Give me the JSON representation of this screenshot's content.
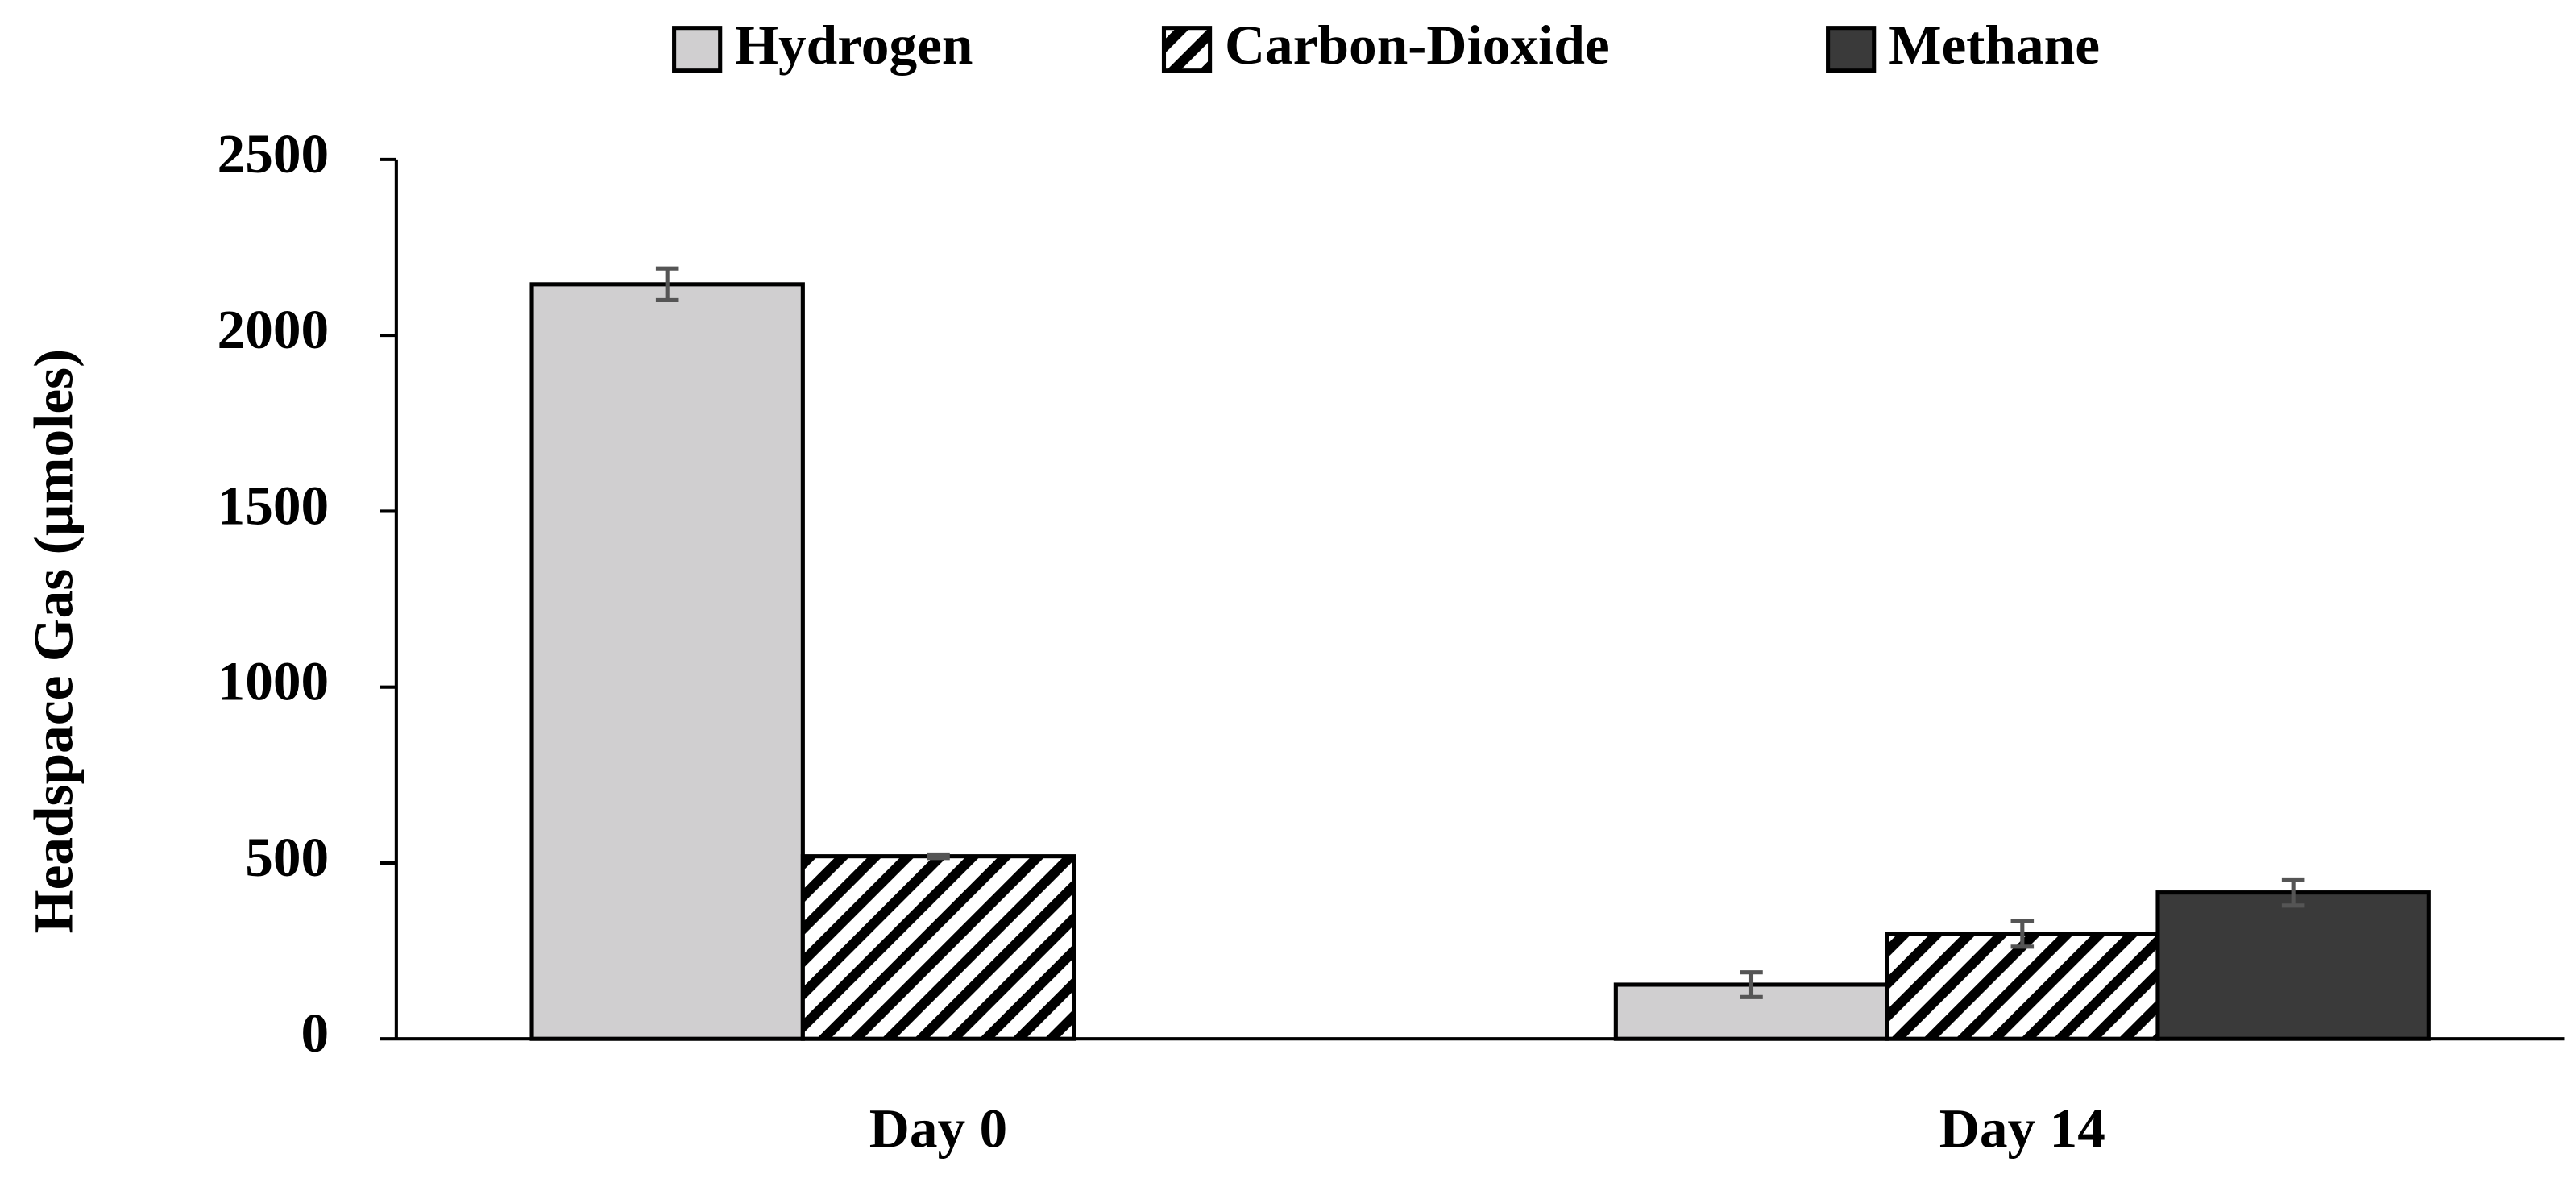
{
  "chart_data": {
    "type": "bar",
    "y_label": "Headspace Gas (µmoles)",
    "categories": [
      "Day 0",
      "Day 14"
    ],
    "series": [
      {
        "name": "Hydrogen",
        "color": "#d0cfd0",
        "values": [
          2145,
          154
        ],
        "errors": [
          45,
          35
        ]
      },
      {
        "name": "Carbon-Dioxide",
        "color": "#ffffff",
        "hatch": true,
        "values": [
          519,
          299
        ],
        "errors": [
          5,
          37
        ]
      },
      {
        "name": "Methane",
        "color": "#3a3a3a",
        "values": [
          0,
          416
        ],
        "errors": [
          0,
          37
        ]
      }
    ],
    "ylim": [
      0,
      2500
    ],
    "yticks": [
      0,
      500,
      1000,
      1500,
      2000,
      2500
    ],
    "grid": false,
    "legend": "top"
  }
}
